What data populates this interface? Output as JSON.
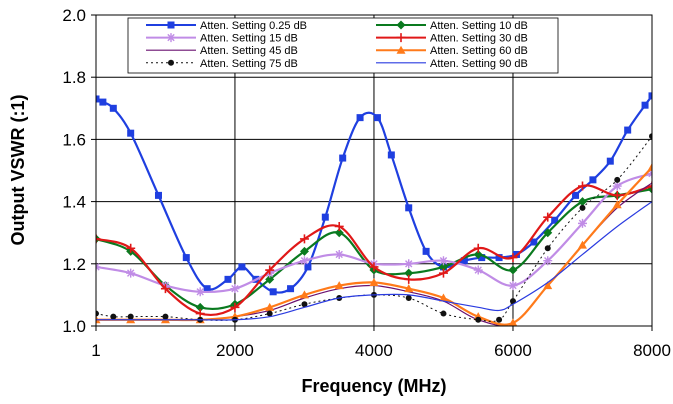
{
  "chart_data": {
    "type": "line",
    "title": "",
    "xlabel": "Frequency (MHz)",
    "ylabel": "Output VSWR (:1)",
    "xlim": [
      1,
      8000
    ],
    "ylim": [
      1.0,
      2.0
    ],
    "x_ticks": [
      1,
      2000,
      4000,
      6000,
      8000
    ],
    "x_tick_labels": [
      "1",
      "2000",
      "4000",
      "6000",
      "8000"
    ],
    "y_ticks": [
      1.0,
      1.2,
      1.4,
      1.6,
      1.8,
      2.0
    ],
    "y_tick_labels": [
      "1.0",
      "1.2",
      "1.4",
      "1.6",
      "1.8",
      "2.0"
    ],
    "grid": true,
    "legend_position": "top",
    "series": [
      {
        "name": "Atten. Setting 0.25 dB",
        "color": "#1f3fe0",
        "marker": "square",
        "x": [
          1,
          100,
          250,
          500,
          900,
          1300,
          1600,
          1900,
          2100,
          2300,
          2550,
          2800,
          3050,
          3300,
          3550,
          3800,
          4050,
          4250,
          4500,
          4750,
          5000,
          5300,
          5550,
          5800,
          6050,
          6300,
          6600,
          6900,
          7150,
          7400,
          7650,
          7900,
          8000
        ],
        "y": [
          1.73,
          1.72,
          1.7,
          1.62,
          1.42,
          1.22,
          1.12,
          1.15,
          1.19,
          1.15,
          1.11,
          1.12,
          1.19,
          1.35,
          1.54,
          1.67,
          1.67,
          1.55,
          1.38,
          1.24,
          1.19,
          1.21,
          1.22,
          1.22,
          1.23,
          1.27,
          1.34,
          1.42,
          1.47,
          1.53,
          1.63,
          1.71,
          1.74
        ]
      },
      {
        "name": "Atten. Setting 10 dB",
        "color": "#0a7a1f",
        "marker": "diamond",
        "x": [
          1,
          500,
          1000,
          1500,
          2000,
          2500,
          3000,
          3500,
          4000,
          4500,
          5000,
          5500,
          6000,
          6500,
          7000,
          7500,
          8000
        ],
        "y": [
          1.28,
          1.24,
          1.13,
          1.06,
          1.07,
          1.15,
          1.24,
          1.3,
          1.18,
          1.17,
          1.19,
          1.23,
          1.18,
          1.3,
          1.4,
          1.42,
          1.44
        ]
      },
      {
        "name": "Atten. Setting 15 dB",
        "color": "#c08ce6",
        "marker": "star",
        "x": [
          1,
          500,
          1000,
          1500,
          2000,
          2500,
          3000,
          3500,
          4000,
          4500,
          5000,
          5500,
          6000,
          6500,
          7000,
          7500,
          8000
        ],
        "y": [
          1.19,
          1.17,
          1.13,
          1.11,
          1.12,
          1.17,
          1.21,
          1.23,
          1.2,
          1.2,
          1.21,
          1.18,
          1.13,
          1.21,
          1.33,
          1.45,
          1.49
        ]
      },
      {
        "name": "Atten. Setting 30 dB",
        "color": "#e01818",
        "marker": "plus",
        "x": [
          1,
          500,
          1000,
          1500,
          2000,
          2500,
          3000,
          3500,
          4000,
          4500,
          5000,
          5500,
          6000,
          6500,
          7000,
          7500,
          8000
        ],
        "y": [
          1.28,
          1.25,
          1.12,
          1.04,
          1.06,
          1.18,
          1.28,
          1.32,
          1.19,
          1.15,
          1.17,
          1.25,
          1.22,
          1.35,
          1.45,
          1.42,
          1.45
        ]
      },
      {
        "name": "Atten. Setting 45 dB",
        "color": "#6a1070",
        "marker": "none",
        "x": [
          1,
          500,
          1000,
          1500,
          2000,
          2500,
          3000,
          3500,
          4000,
          4500,
          5000,
          5500,
          6000,
          6500,
          7000,
          7500,
          8000
        ],
        "y": [
          1.02,
          1.02,
          1.02,
          1.02,
          1.03,
          1.05,
          1.09,
          1.12,
          1.13,
          1.11,
          1.08,
          1.02,
          1.01,
          1.13,
          1.26,
          1.38,
          1.46
        ]
      },
      {
        "name": "Atten. Setting 60 dB",
        "color": "#ff7a1a",
        "marker": "triangle",
        "x": [
          1,
          500,
          1000,
          1500,
          2000,
          2500,
          3000,
          3500,
          4000,
          4500,
          5000,
          5500,
          6000,
          6500,
          7000,
          7500,
          8000
        ],
        "y": [
          1.02,
          1.02,
          1.02,
          1.02,
          1.03,
          1.06,
          1.1,
          1.13,
          1.14,
          1.12,
          1.09,
          1.03,
          1.01,
          1.13,
          1.26,
          1.39,
          1.51
        ]
      },
      {
        "name": "Atten. Setting 75 dB",
        "color": "#111111",
        "marker": "circle",
        "dashed": true,
        "x": [
          1,
          250,
          500,
          1000,
          1500,
          2000,
          2500,
          3000,
          3500,
          4000,
          4500,
          5000,
          5500,
          5800,
          6000,
          6500,
          7000,
          7500,
          8000
        ],
        "y": [
          1.04,
          1.03,
          1.03,
          1.03,
          1.02,
          1.02,
          1.04,
          1.07,
          1.09,
          1.1,
          1.09,
          1.04,
          1.02,
          1.02,
          1.08,
          1.25,
          1.38,
          1.47,
          1.61
        ]
      },
      {
        "name": "Atten. Setting 90 dB",
        "color": "#2a3be0",
        "marker": "none",
        "x": [
          1,
          500,
          1000,
          1500,
          2000,
          2500,
          3000,
          3500,
          4000,
          4500,
          5000,
          5500,
          5800,
          6000,
          6500,
          7000,
          7500,
          8000
        ],
        "y": [
          1.02,
          1.02,
          1.02,
          1.02,
          1.02,
          1.03,
          1.06,
          1.09,
          1.1,
          1.1,
          1.08,
          1.06,
          1.05,
          1.07,
          1.14,
          1.23,
          1.32,
          1.4
        ]
      }
    ]
  }
}
